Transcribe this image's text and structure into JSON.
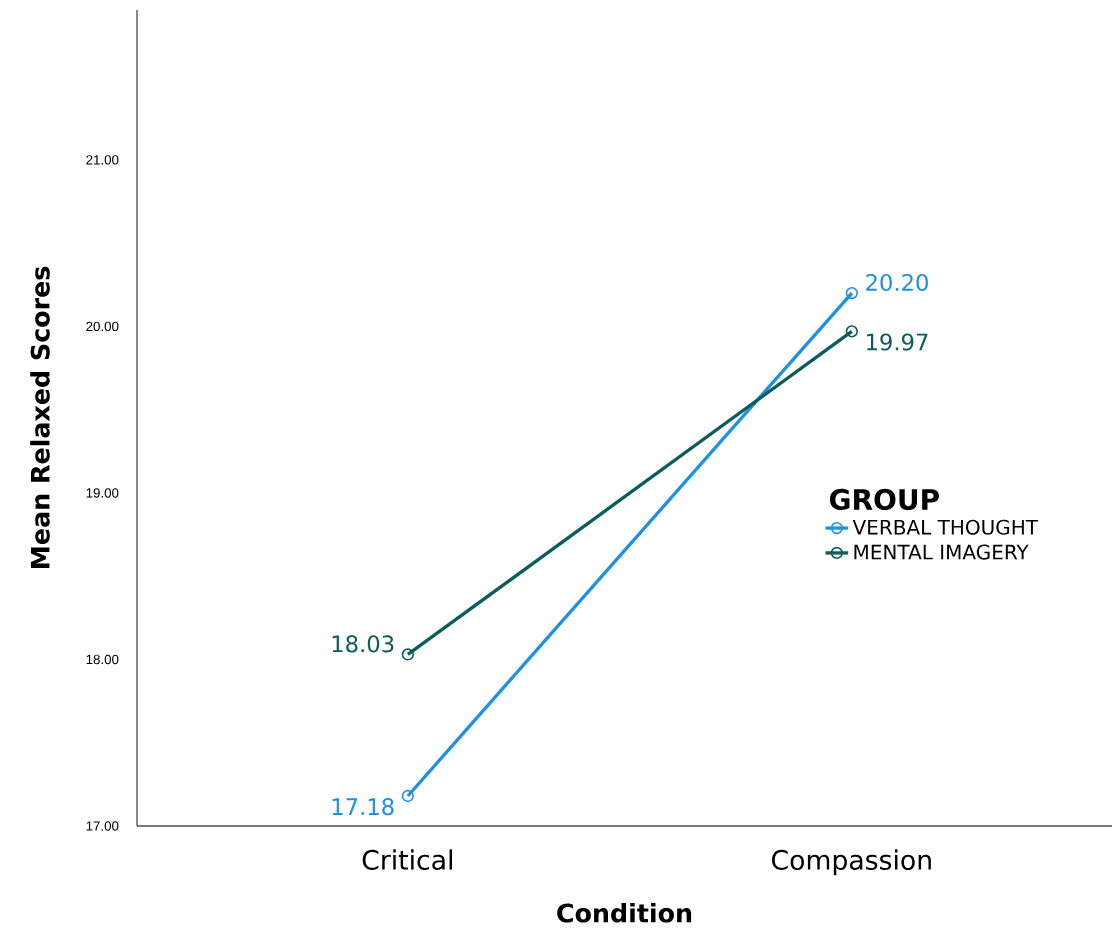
{
  "chart_data": {
    "type": "line",
    "xlabel": "Condition",
    "ylabel": "Mean Relaxed Scores",
    "legend_title": "GROUP",
    "categories": [
      "Critical",
      "Compassion"
    ],
    "series": [
      {
        "name": "VERBAL THOUGHT",
        "color": "#1e90e6",
        "values": [
          17.18,
          20.2
        ],
        "value_labels": [
          "17.18",
          "20.20"
        ]
      },
      {
        "name": "MENTAL IMAGERY",
        "color": "#0d5c5c",
        "values": [
          18.03,
          19.97
        ],
        "value_labels": [
          "18.03",
          "19.97"
        ]
      }
    ],
    "ylim": [
      17,
      21.9
    ],
    "yticks": [
      {
        "value": 17,
        "label": "17.00"
      },
      {
        "value": 18,
        "label": "18.00"
      },
      {
        "value": 19,
        "label": "19.00"
      },
      {
        "value": 20,
        "label": "20.00"
      },
      {
        "value": 21,
        "label": "21.00"
      }
    ],
    "grid": false,
    "legend": "right",
    "marker": "circle",
    "line_style": "solid"
  }
}
